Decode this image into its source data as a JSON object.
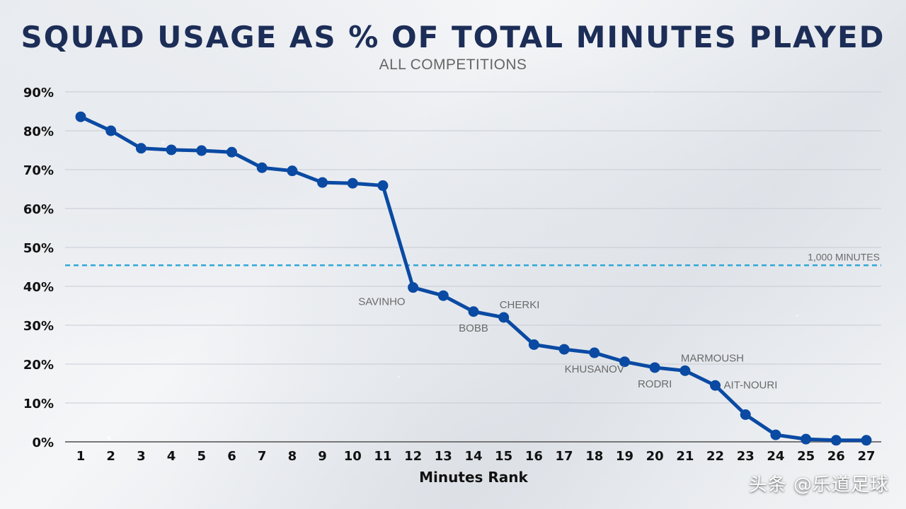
{
  "header": {
    "title": "SQUAD USAGE AS % OF TOTAL MINUTES PLAYED",
    "subtitle": "ALL COMPETITIONS"
  },
  "watermark": "头条 @乐道足球",
  "colors": {
    "line": "#0a4aa3",
    "reference": "#32a8d7",
    "grid": "#c6ccd4",
    "tick": "#111111",
    "annotation": "#6a6a6a"
  },
  "chart_data": {
    "type": "line",
    "title": "SQUAD USAGE AS % OF TOTAL MINUTES PLAYED",
    "subtitle": "ALL COMPETITIONS",
    "xlabel": "Minutes Rank",
    "ylabel": "",
    "x": [
      1,
      2,
      3,
      4,
      5,
      6,
      7,
      8,
      9,
      10,
      11,
      12,
      13,
      14,
      15,
      16,
      17,
      18,
      19,
      20,
      21,
      22,
      23,
      24,
      25,
      26,
      27
    ],
    "x_tick_labels": [
      "1",
      "2",
      "3",
      "4",
      "5",
      "6",
      "7",
      "8",
      "9",
      "10",
      "11",
      "12",
      "13",
      "14",
      "15",
      "16",
      "17",
      "18",
      "19",
      "20",
      "21",
      "22",
      "23",
      "24",
      "25",
      "26",
      "27"
    ],
    "series": [
      {
        "values": [
          83.6,
          80.0,
          75.5,
          75.1,
          74.9,
          74.5,
          70.5,
          69.7,
          66.7,
          66.5,
          65.9,
          39.7,
          37.6,
          33.5,
          32.0,
          25.0,
          23.8,
          22.9,
          20.6,
          19.1,
          18.3,
          14.5,
          7.0,
          1.8,
          0.7,
          0.4,
          0.4
        ]
      }
    ],
    "ylim": [
      0,
      90
    ],
    "y_ticks": [
      0,
      10,
      20,
      30,
      40,
      50,
      60,
      70,
      80,
      90
    ],
    "y_tick_labels": [
      "0%",
      "10%",
      "20%",
      "30%",
      "40%",
      "50%",
      "60%",
      "70%",
      "80%",
      "90%"
    ],
    "reference_line": {
      "label": "1,000 MINUTES",
      "value": 45.4
    },
    "annotations": [
      {
        "label": "SAVINHO",
        "x": 12,
        "position": "below-left"
      },
      {
        "label": "BOBB",
        "x": 14,
        "position": "below"
      },
      {
        "label": "CHERKI",
        "x": 15,
        "position": "above-right"
      },
      {
        "label": "KHUSANOV",
        "x": 18,
        "position": "below"
      },
      {
        "label": "RODRI",
        "x": 20,
        "position": "below"
      },
      {
        "label": "MARMOUSH",
        "x": 21,
        "position": "above-right"
      },
      {
        "label": "AIT-NOURI",
        "x": 22,
        "position": "right"
      }
    ],
    "grid": true,
    "legend": "none"
  }
}
